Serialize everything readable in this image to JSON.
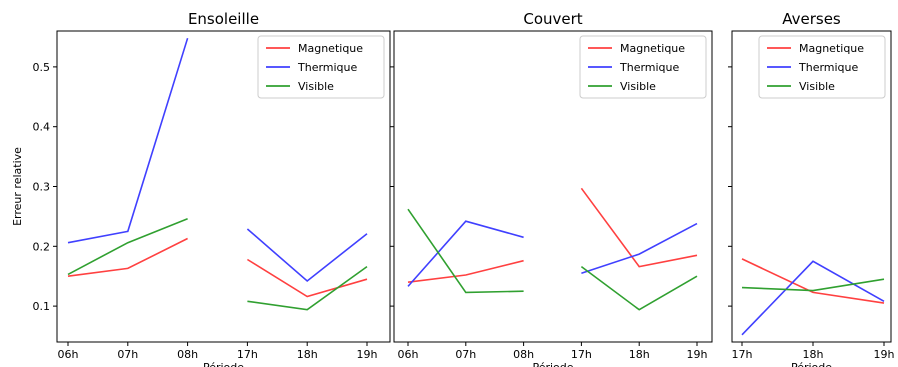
{
  "chart_data": [
    {
      "type": "line",
      "title": "Ensoleille",
      "xlabel": "Période",
      "ylabel": "Erreur relative",
      "categories": [
        "06h",
        "07h",
        "08h",
        "17h",
        "18h",
        "19h"
      ],
      "ylim": [
        0.04,
        0.56
      ],
      "yticks": [
        "0.1",
        "0.2",
        "0.3",
        "0.4",
        "0.5"
      ],
      "legend_position": "top-right",
      "series": [
        {
          "name": "Magnetique",
          "color": "#ff4040",
          "values": [
            0.15,
            0.163,
            0.213,
            0.178,
            0.116,
            0.145
          ],
          "breaks_after": [
            2
          ]
        },
        {
          "name": "Thermique",
          "color": "#4040ff",
          "values": [
            0.206,
            0.225,
            0.548,
            0.229,
            0.142,
            0.221
          ],
          "breaks_after": [
            2
          ]
        },
        {
          "name": "Visible",
          "color": "#30a030",
          "values": [
            0.153,
            0.206,
            0.246,
            0.108,
            0.094,
            0.166
          ],
          "breaks_after": [
            2
          ]
        }
      ]
    },
    {
      "type": "line",
      "title": "Couvert",
      "xlabel": "Période",
      "ylabel": "",
      "categories": [
        "06h",
        "07h",
        "08h",
        "17h",
        "18h",
        "19h"
      ],
      "ylim": [
        0.04,
        0.56
      ],
      "yticks": [],
      "legend_position": "top-right",
      "series": [
        {
          "name": "Magnetique",
          "color": "#ff4040",
          "values": [
            0.14,
            0.152,
            0.176,
            0.297,
            0.166,
            0.185
          ],
          "breaks_after": [
            2
          ]
        },
        {
          "name": "Thermique",
          "color": "#4040ff",
          "values": [
            0.133,
            0.242,
            0.215,
            0.155,
            0.187,
            0.238
          ],
          "breaks_after": [
            2
          ]
        },
        {
          "name": "Visible",
          "color": "#30a030",
          "values": [
            0.262,
            0.123,
            0.125,
            0.166,
            0.094,
            0.15
          ],
          "breaks_after": [
            2
          ]
        }
      ]
    },
    {
      "type": "line",
      "title": "Averses",
      "xlabel": "Période",
      "ylabel": "",
      "categories": [
        "17h",
        "18h",
        "19h"
      ],
      "ylim": [
        0.04,
        0.56
      ],
      "yticks": [],
      "legend_position": "top-right",
      "series": [
        {
          "name": "Magnetique",
          "color": "#ff4040",
          "values": [
            0.179,
            0.123,
            0.105
          ],
          "breaks_after": []
        },
        {
          "name": "Thermique",
          "color": "#4040ff",
          "values": [
            0.052,
            0.175,
            0.108
          ],
          "breaks_after": []
        },
        {
          "name": "Visible",
          "color": "#30a030",
          "values": [
            0.131,
            0.126,
            0.145
          ],
          "breaks_after": []
        }
      ]
    }
  ]
}
